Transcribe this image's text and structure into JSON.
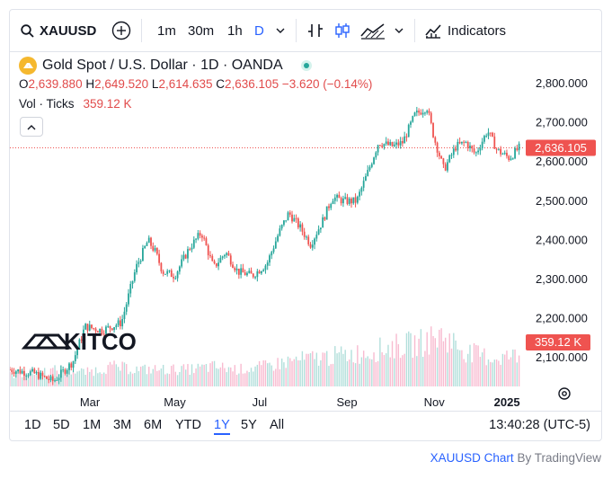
{
  "toolbar": {
    "symbol": "XAUUSD",
    "intervals": [
      "1m",
      "30m",
      "1h",
      "D"
    ],
    "active_interval": "D",
    "indicators_label": "Indicators"
  },
  "legend": {
    "title": "Gold Spot / U.S. Dollar · 1D · OANDA",
    "o_label": "O",
    "o_value": "2,639.880",
    "h_label": "H",
    "h_value": "2,649.520",
    "l_label": "L",
    "l_value": "2,614.635",
    "c_label": "C",
    "c_value": "2,636.105",
    "change": "−3.620 (−0.14%)",
    "vol_label": "Vol · Ticks",
    "vol_value": "359.12 K"
  },
  "watermark": "KITCO",
  "price_badge": "2,636.105",
  "volume_badge": "359.12 K",
  "colors": {
    "up": "#26a69a",
    "down": "#ef5350",
    "accent": "#2962ff",
    "dotted_line": "#ef5350"
  },
  "ranges": [
    "1D",
    "5D",
    "1M",
    "3M",
    "6M",
    "YTD",
    "1Y",
    "5Y",
    "All"
  ],
  "active_range": "1Y",
  "clock": "13:40:28 (UTC-5)",
  "footer": {
    "link": "XAUUSD Chart",
    "by": "By TradingView"
  },
  "chart_data": {
    "type": "candlestick",
    "y_ticks": [
      "2,800.000",
      "2,700.000",
      "2,600.000",
      "2,500.000",
      "2,400.000",
      "2,300.000",
      "2,200.000",
      "2,100.000"
    ],
    "y_tick_values": [
      2800,
      2700,
      2600,
      2500,
      2400,
      2300,
      2200,
      2100
    ],
    "ylim": [
      2020,
      2830
    ],
    "x_ticks": [
      "Mar",
      "May",
      "Jul",
      "Sep",
      "Nov",
      "2025"
    ],
    "x_tick_positions": [
      0.165,
      0.34,
      0.515,
      0.695,
      0.875,
      1.025
    ],
    "last_close": 2636.105,
    "close_path": [
      [
        0.0,
        2070
      ],
      [
        0.05,
        2060
      ],
      [
        0.09,
        2040
      ],
      [
        0.13,
        2090
      ],
      [
        0.155,
        2180
      ],
      [
        0.19,
        2170
      ],
      [
        0.23,
        2190
      ],
      [
        0.26,
        2330
      ],
      [
        0.285,
        2400
      ],
      [
        0.3,
        2370
      ],
      [
        0.315,
        2320
      ],
      [
        0.34,
        2310
      ],
      [
        0.37,
        2380
      ],
      [
        0.395,
        2420
      ],
      [
        0.42,
        2330
      ],
      [
        0.445,
        2370
      ],
      [
        0.47,
        2320
      ],
      [
        0.5,
        2310
      ],
      [
        0.53,
        2340
      ],
      [
        0.555,
        2420
      ],
      [
        0.575,
        2470
      ],
      [
        0.6,
        2430
      ],
      [
        0.62,
        2390
      ],
      [
        0.645,
        2450
      ],
      [
        0.665,
        2510
      ],
      [
        0.69,
        2500
      ],
      [
        0.715,
        2500
      ],
      [
        0.74,
        2580
      ],
      [
        0.76,
        2650
      ],
      [
        0.79,
        2640
      ],
      [
        0.81,
        2650
      ],
      [
        0.835,
        2720
      ],
      [
        0.86,
        2740
      ],
      [
        0.875,
        2660
      ],
      [
        0.895,
        2580
      ],
      [
        0.92,
        2640
      ],
      [
        0.94,
        2650
      ],
      [
        0.96,
        2620
      ],
      [
        0.985,
        2680
      ],
      [
        1.005,
        2630
      ],
      [
        1.03,
        2610
      ],
      [
        1.05,
        2636
      ]
    ],
    "volume_relative": [
      0.2,
      0.25,
      0.3,
      0.25,
      0.35,
      0.3,
      0.3,
      0.3,
      0.35,
      0.3,
      0.35,
      0.45,
      0.5,
      0.55,
      0.6,
      0.7,
      0.75,
      0.9,
      0.6,
      0.5,
      0.55
    ]
  }
}
